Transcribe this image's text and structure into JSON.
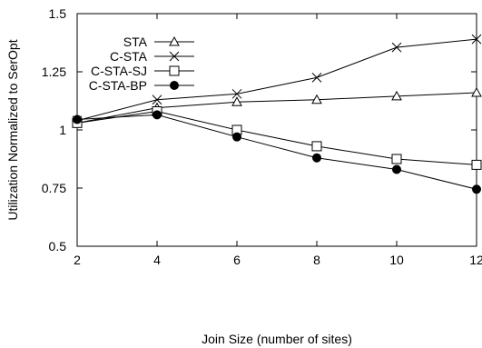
{
  "chart_data": {
    "type": "line",
    "title": "",
    "xlabel": "Join Size (number of sites)",
    "ylabel": "Utilization Normalized to SerOpt",
    "xlim": [
      2,
      12
    ],
    "ylim": [
      0.5,
      1.5
    ],
    "x_ticks": [
      "2",
      "4",
      "6",
      "8",
      "10",
      "12"
    ],
    "y_ticks": [
      "0.5",
      "0.75",
      "1",
      "1.25",
      "1.5"
    ],
    "x": [
      2,
      4,
      6,
      8,
      10,
      12
    ],
    "grid": false,
    "legend_position": "top-left",
    "series": [
      {
        "name": "STA",
        "marker": "triangle",
        "values": [
          1.03,
          1.095,
          1.12,
          1.13,
          1.145,
          1.16
        ]
      },
      {
        "name": "C-STA",
        "marker": "x",
        "values": [
          1.04,
          1.13,
          1.155,
          1.225,
          1.355,
          1.39
        ]
      },
      {
        "name": "C-STA-SJ",
        "marker": "square",
        "values": [
          1.03,
          1.08,
          1.0,
          0.93,
          0.875,
          0.85
        ]
      },
      {
        "name": "C-STA-BP",
        "marker": "filled-circle",
        "values": [
          1.045,
          1.065,
          0.97,
          0.88,
          0.83,
          0.745
        ]
      }
    ]
  }
}
